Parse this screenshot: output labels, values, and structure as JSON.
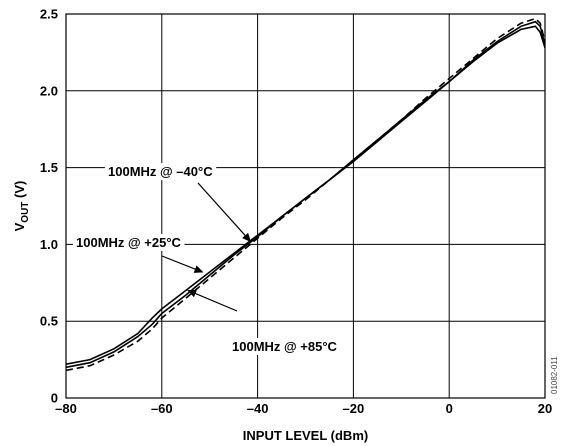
{
  "chart_data": {
    "type": "line",
    "title": "",
    "xlabel": "INPUT LEVEL (dBm)",
    "ylabel_main": "V",
    "ylabel_sub": "OUT",
    "ylabel_unit": " (V)",
    "xlim": [
      -80,
      20
    ],
    "ylim": [
      0,
      2.5
    ],
    "grid": true,
    "x_ticks": [
      -80,
      -60,
      -40,
      -20,
      0,
      20
    ],
    "x_tick_labels": [
      "–80",
      "–60",
      "–40",
      "–20",
      "0",
      "20"
    ],
    "y_ticks": [
      0,
      0.5,
      1.0,
      1.5,
      2.0,
      2.5
    ],
    "y_tick_labels": [
      "0",
      "0.5",
      "1.0",
      "1.5",
      "2.0",
      "2.5"
    ],
    "figure_id": "01082-011",
    "series": [
      {
        "name": "100MHz @ –40°C",
        "line_style": "solid",
        "points": [
          [
            -80,
            0.22
          ],
          [
            -75,
            0.25
          ],
          [
            -70,
            0.32
          ],
          [
            -65,
            0.42
          ],
          [
            -62,
            0.52
          ],
          [
            -60,
            0.58
          ],
          [
            -55,
            0.7
          ],
          [
            -50,
            0.82
          ],
          [
            -45,
            0.94
          ],
          [
            -40,
            1.06
          ],
          [
            -35,
            1.18
          ],
          [
            -30,
            1.3
          ],
          [
            -25,
            1.42
          ],
          [
            -20,
            1.54
          ],
          [
            -15,
            1.67
          ],
          [
            -10,
            1.8
          ],
          [
            -5,
            1.93
          ],
          [
            0,
            2.06
          ],
          [
            5,
            2.19
          ],
          [
            10,
            2.31
          ],
          [
            15,
            2.4
          ],
          [
            18,
            2.42
          ],
          [
            19,
            2.38
          ],
          [
            20,
            2.28
          ]
        ]
      },
      {
        "name": "100MHz @ +25°C",
        "line_style": "solid",
        "points": [
          [
            -80,
            0.2
          ],
          [
            -75,
            0.23
          ],
          [
            -70,
            0.3
          ],
          [
            -65,
            0.4
          ],
          [
            -62,
            0.48
          ],
          [
            -60,
            0.55
          ],
          [
            -55,
            0.67
          ],
          [
            -50,
            0.8
          ],
          [
            -45,
            0.93
          ],
          [
            -40,
            1.05
          ],
          [
            -35,
            1.18
          ],
          [
            -30,
            1.3
          ],
          [
            -25,
            1.42
          ],
          [
            -20,
            1.55
          ],
          [
            -15,
            1.68
          ],
          [
            -10,
            1.81
          ],
          [
            -5,
            1.94
          ],
          [
            0,
            2.06
          ],
          [
            5,
            2.2
          ],
          [
            10,
            2.32
          ],
          [
            15,
            2.42
          ],
          [
            18,
            2.45
          ],
          [
            19,
            2.42
          ],
          [
            20,
            2.3
          ]
        ]
      },
      {
        "name": "100MHz @ +85°C",
        "line_style": "dashed",
        "points": [
          [
            -80,
            0.18
          ],
          [
            -75,
            0.21
          ],
          [
            -70,
            0.28
          ],
          [
            -65,
            0.37
          ],
          [
            -62,
            0.45
          ],
          [
            -60,
            0.52
          ],
          [
            -55,
            0.65
          ],
          [
            -50,
            0.78
          ],
          [
            -45,
            0.91
          ],
          [
            -40,
            1.04
          ],
          [
            -35,
            1.17
          ],
          [
            -30,
            1.29
          ],
          [
            -25,
            1.42
          ],
          [
            -20,
            1.55
          ],
          [
            -15,
            1.68
          ],
          [
            -10,
            1.81
          ],
          [
            -5,
            1.95
          ],
          [
            0,
            2.08
          ],
          [
            5,
            2.21
          ],
          [
            10,
            2.34
          ],
          [
            15,
            2.44
          ],
          [
            18,
            2.47
          ],
          [
            19,
            2.44
          ],
          [
            20,
            2.32
          ]
        ]
      }
    ],
    "annotations": [
      {
        "text": "100MHz @ –40°C",
        "series_index": 0,
        "arrow_tip": [
          -41.5,
          1.02
        ]
      },
      {
        "text": "100MHz @ +25°C",
        "series_index": 1,
        "arrow_tip": [
          -51.5,
          0.82
        ]
      },
      {
        "text": "100MHz @ +85°C",
        "series_index": 2,
        "arrow_tip": [
          -54.5,
          0.7
        ]
      }
    ]
  }
}
